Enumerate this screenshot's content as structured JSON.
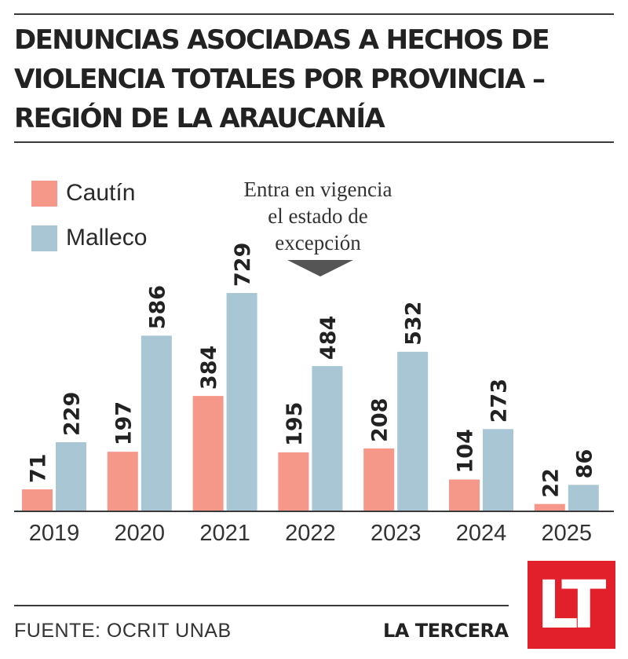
{
  "colors": {
    "cautin": "#f5988a",
    "malleco": "#a9c6d4",
    "axis": "#3a3a3a",
    "brand": "#e2202c"
  },
  "header": {
    "title": "DENUNCIAS ASOCIADAS A HECHOS DE VIOLENCIA TOTALES POR PROVINCIA – REGIÓN DE LA ARAUCANÍA"
  },
  "legend": {
    "cautin": "Cautín",
    "malleco": "Malleco"
  },
  "annotation": {
    "lines": [
      "Entra en vigencia",
      "el estado de",
      "excepción"
    ],
    "year": "2022"
  },
  "footer": {
    "source": "FUENTE: OCRIT UNAB",
    "brand": "LA TERCERA",
    "logo": "LT"
  },
  "chart_data": {
    "type": "bar",
    "title": "DENUNCIAS ASOCIADAS A HECHOS DE VIOLENCIA TOTALES POR PROVINCIA – REGIÓN DE LA ARAUCANÍA",
    "categories": [
      "2019",
      "2020",
      "2021",
      "2022",
      "2023",
      "2024",
      "2025"
    ],
    "series": [
      {
        "name": "Cautín",
        "values": [
          71,
          197,
          384,
          195,
          208,
          104,
          22
        ]
      },
      {
        "name": "Malleco",
        "values": [
          229,
          586,
          729,
          484,
          532,
          273,
          86
        ]
      }
    ],
    "ylim": [
      0,
      729
    ],
    "grid": false,
    "legend_position": "top-left",
    "data_labels": true
  }
}
